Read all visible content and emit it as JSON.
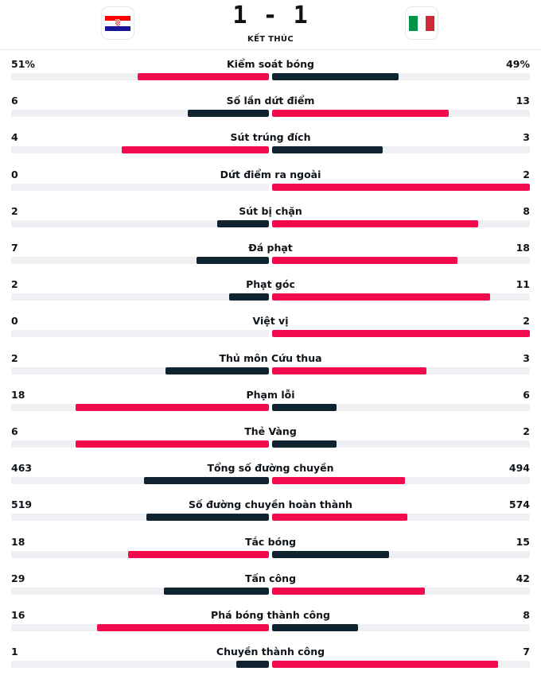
{
  "match": {
    "score": "1 - 1",
    "status": "KẾT THÚC",
    "home_flag": "croatia-flag",
    "away_flag": "italy-flag"
  },
  "colors": {
    "leader": "#f20a4d",
    "trailer": "#0f2230",
    "track": "#eef0f3"
  },
  "stats": [
    {
      "label": "Kiểm soát bóng",
      "home": "51%",
      "away": "49%",
      "home_share": 0.51,
      "away_share": 0.49
    },
    {
      "label": "Số lần dứt điểm",
      "home": "6",
      "away": "13",
      "home_share": 0.3158,
      "away_share": 0.6842
    },
    {
      "label": "Sút trúng đích",
      "home": "4",
      "away": "3",
      "home_share": 0.5714,
      "away_share": 0.4286
    },
    {
      "label": "Dứt điểm ra ngoài",
      "home": "0",
      "away": "2",
      "home_share": 0.0,
      "away_share": 1.0
    },
    {
      "label": "Sút bị chặn",
      "home": "2",
      "away": "8",
      "home_share": 0.2,
      "away_share": 0.8
    },
    {
      "label": "Đá phạt",
      "home": "7",
      "away": "18",
      "home_share": 0.28,
      "away_share": 0.72
    },
    {
      "label": "Phạt góc",
      "home": "2",
      "away": "11",
      "home_share": 0.1538,
      "away_share": 0.8462
    },
    {
      "label": "Việt vị",
      "home": "0",
      "away": "2",
      "home_share": 0.0,
      "away_share": 1.0
    },
    {
      "label": "Thủ môn Cứu thua",
      "home": "2",
      "away": "3",
      "home_share": 0.4,
      "away_share": 0.6
    },
    {
      "label": "Phạm lỗi",
      "home": "18",
      "away": "6",
      "home_share": 0.75,
      "away_share": 0.25
    },
    {
      "label": "Thẻ Vàng",
      "home": "6",
      "away": "2",
      "home_share": 0.75,
      "away_share": 0.25
    },
    {
      "label": "Tổng số đường chuyền",
      "home": "463",
      "away": "494",
      "home_share": 0.4838,
      "away_share": 0.5162
    },
    {
      "label": "Số đường chuyền hoàn thành",
      "home": "519",
      "away": "574",
      "home_share": 0.4749,
      "away_share": 0.5251
    },
    {
      "label": "Tắc bóng",
      "home": "18",
      "away": "15",
      "home_share": 0.5455,
      "away_share": 0.4545
    },
    {
      "label": "Tấn công",
      "home": "29",
      "away": "42",
      "home_share": 0.4085,
      "away_share": 0.5915
    },
    {
      "label": "Phá bóng thành công",
      "home": "16",
      "away": "8",
      "home_share": 0.6667,
      "away_share": 0.3333
    },
    {
      "label": "Chuyền thành công",
      "home": "1",
      "away": "7",
      "home_share": 0.125,
      "away_share": 0.875
    }
  ]
}
